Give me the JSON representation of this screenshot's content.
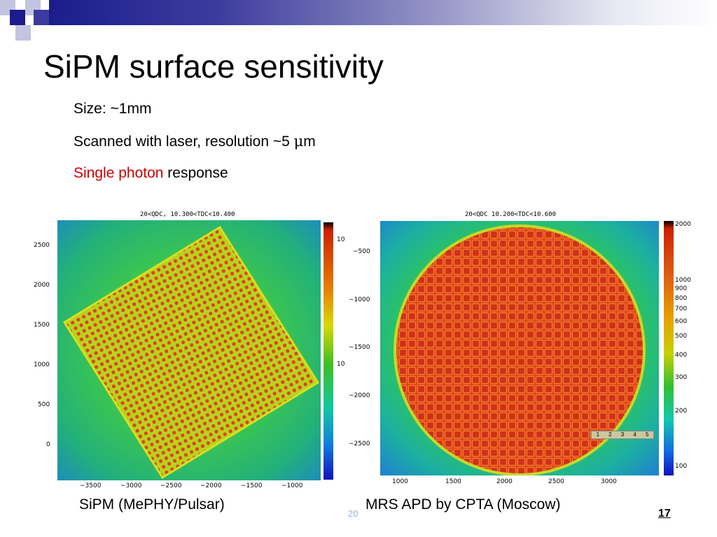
{
  "slide": {
    "title": "SiPM surface sensitivity",
    "bullets": [
      {
        "text": "Size: ~1mm"
      },
      {
        "text_before": "Scanned with laser, resolution ~5 ",
        "mu": "μ",
        "text_after": "m"
      },
      {
        "red": "Single photon",
        "rest": " response"
      }
    ],
    "footer_fragment": "20",
    "page_number": "17"
  },
  "left_plot": {
    "label": "20<QDC, 10.300<TDC<10.400",
    "y_ticks": [
      "2500",
      "2000",
      "1500",
      "1000",
      "500",
      "0"
    ],
    "x_ticks": [
      "−3500",
      "−3000",
      "−2500",
      "−2000",
      "−1500",
      "−1000"
    ],
    "scale_ticks": [
      "10",
      "10"
    ],
    "caption": "SiPM (MePHY/Pulsar)"
  },
  "right_plot": {
    "label": "20<QDC 10.200<TDC<10.600",
    "y_ticks": [
      "−500",
      "−1000",
      "−1500",
      "−2000",
      "−2500"
    ],
    "x_ticks": [
      "1000",
      "1500",
      "2000",
      "2500",
      "3000"
    ],
    "scale_ticks": [
      "2000",
      "1000",
      "900",
      "800",
      "700",
      "600",
      "500",
      "400",
      "300",
      "200",
      "100"
    ],
    "legend_cells": [
      "1",
      "2",
      "3",
      "4",
      "5"
    ],
    "caption": "MRS APD by CPTA (Moscow)"
  },
  "colors": {
    "accent_dark": "#1c1c8c",
    "accent_light": "#8d8dc2",
    "red_text": "#cc0000"
  }
}
